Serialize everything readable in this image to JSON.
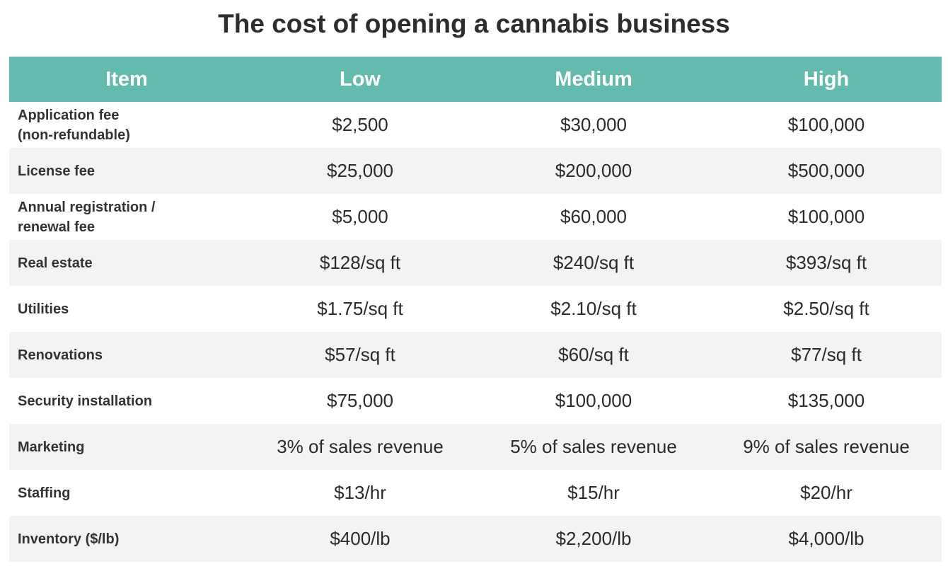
{
  "chart_data": {
    "type": "table",
    "title": "The cost of opening a cannabis business",
    "columns": [
      "Item",
      "Low",
      "Medium",
      "High"
    ],
    "rows": [
      {
        "item": "Application fee\n(non-refundable)",
        "low": "$2,500",
        "medium": "$30,000",
        "high": "$100,000"
      },
      {
        "item": "License fee",
        "low": "$25,000",
        "medium": "$200,000",
        "high": "$500,000"
      },
      {
        "item": "Annual registration /\nrenewal fee",
        "low": "$5,000",
        "medium": "$60,000",
        "high": "$100,000"
      },
      {
        "item": "Real estate",
        "low": "$128/sq ft",
        "medium": "$240/sq ft",
        "high": "$393/sq ft"
      },
      {
        "item": "Utilities",
        "low": "$1.75/sq ft",
        "medium": "$2.10/sq ft",
        "high": "$2.50/sq ft"
      },
      {
        "item": "Renovations",
        "low": "$57/sq ft",
        "medium": "$60/sq ft",
        "high": "$77/sq ft"
      },
      {
        "item": "Security installation",
        "low": "$75,000",
        "medium": "$100,000",
        "high": "$135,000"
      },
      {
        "item": "Marketing",
        "low": "3% of sales revenue",
        "medium": "5% of sales revenue",
        "high": "9% of sales revenue"
      },
      {
        "item": "Staffing",
        "low": "$13/hr",
        "medium": "$15/hr",
        "high": "$20/hr"
      },
      {
        "item": "Inventory ($/lb)",
        "low": "$400/lb",
        "medium": "$2,200/lb",
        "high": "$4,000/lb"
      }
    ]
  },
  "colors": {
    "header_background": "#63bbad",
    "header_text": "#ffffff",
    "stripe": "#f3f3f3"
  }
}
